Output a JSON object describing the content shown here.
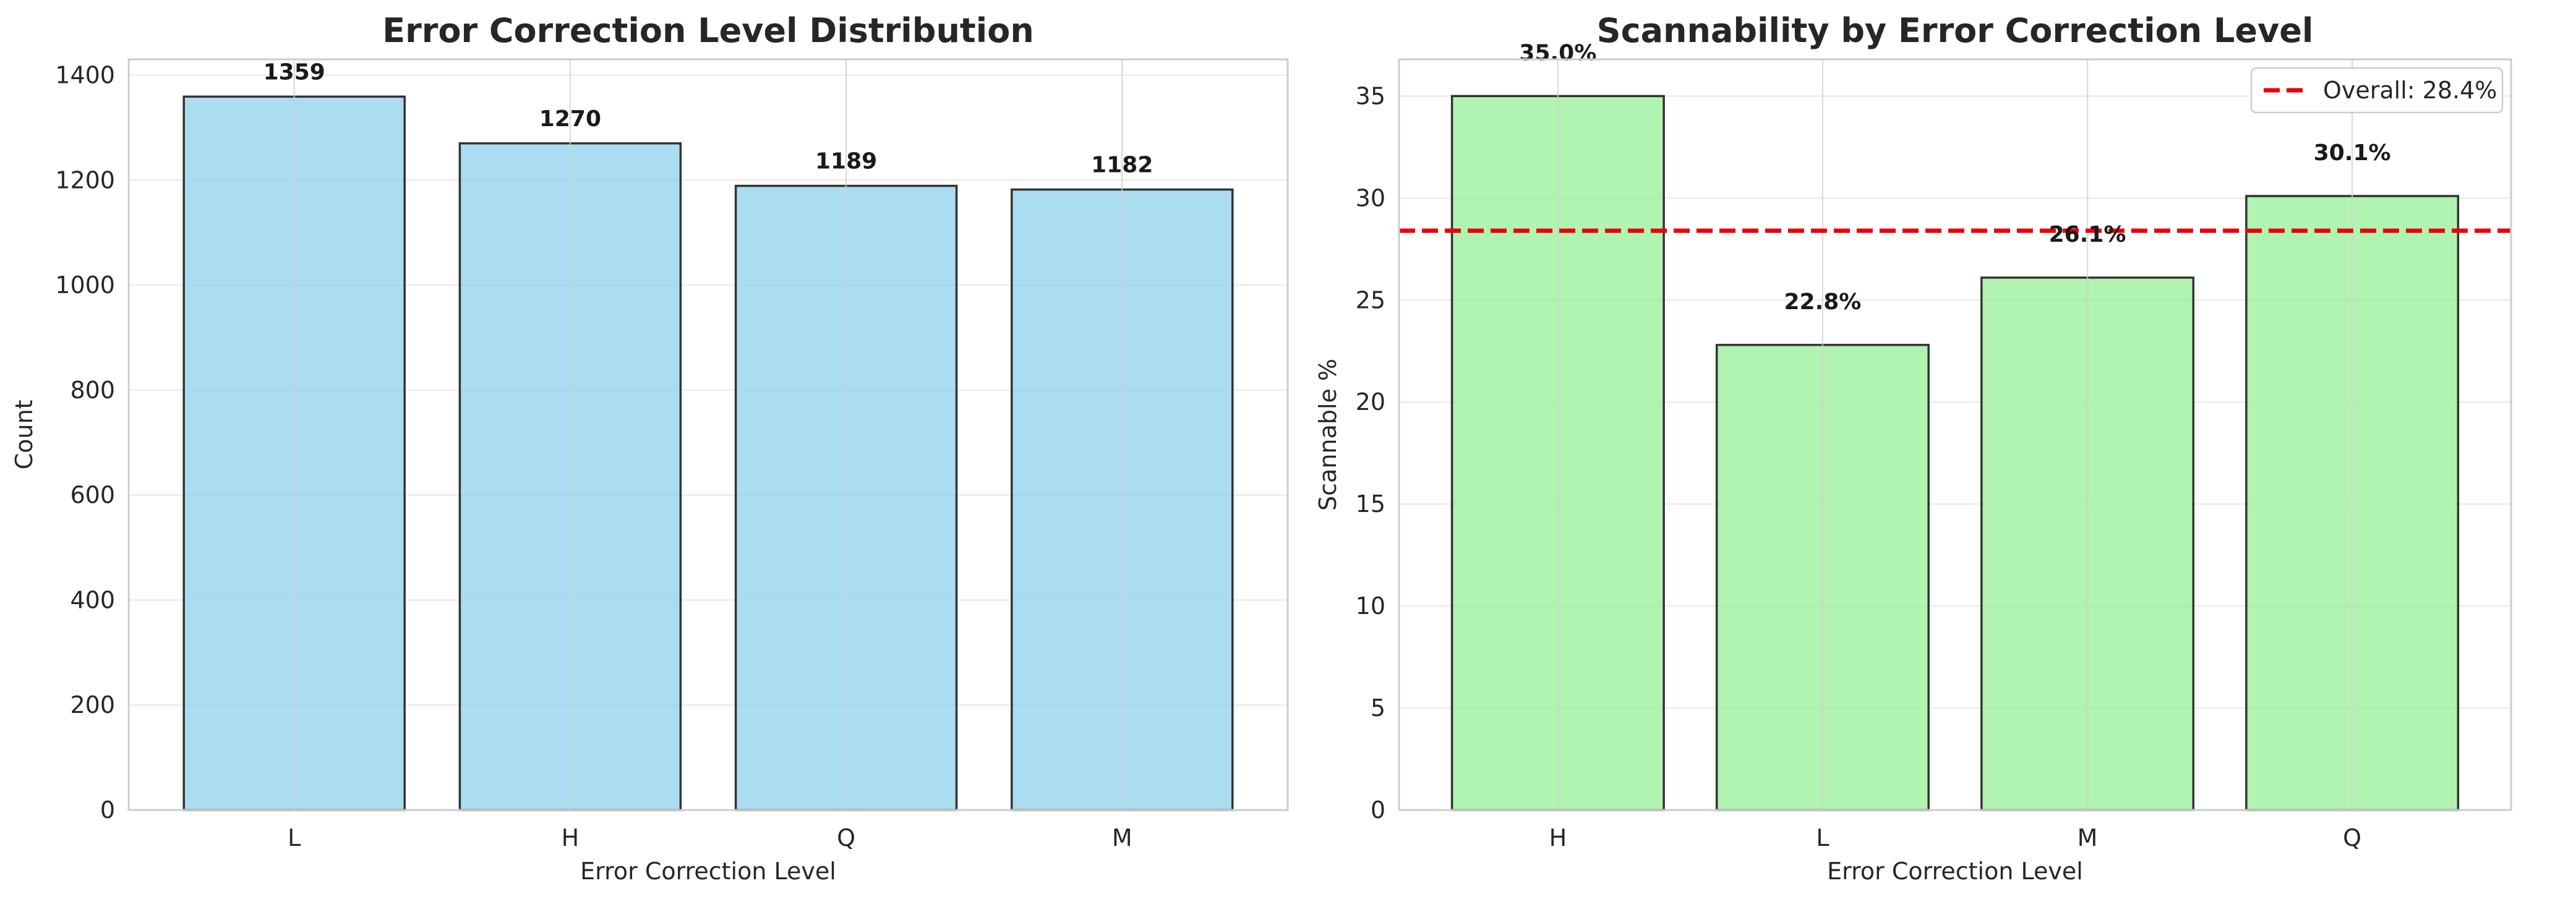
{
  "chart_data": [
    {
      "type": "bar",
      "title": "Error Correction Level Distribution",
      "xlabel": "Error Correction Level",
      "ylabel": "Count",
      "categories": [
        "L",
        "H",
        "Q",
        "M"
      ],
      "values": [
        1359,
        1270,
        1189,
        1182
      ],
      "value_labels": [
        "1359",
        "1270",
        "1189",
        "1182"
      ],
      "ylim": [
        0,
        1430
      ],
      "yticks": [
        0,
        200,
        400,
        600,
        800,
        1000,
        1200,
        1400
      ],
      "grid": true,
      "bar_color": "#87CEEB",
      "edge_color": "#333333"
    },
    {
      "type": "bar",
      "title": "Scannability by Error Correction Level",
      "xlabel": "Error Correction Level",
      "ylabel": "Scannable %",
      "categories": [
        "H",
        "L",
        "M",
        "Q"
      ],
      "values": [
        35.0,
        22.8,
        26.1,
        30.1
      ],
      "value_labels": [
        "35.0%",
        "22.8%",
        "26.1%",
        "30.1%"
      ],
      "ylim": [
        0,
        36.8
      ],
      "yticks": [
        0,
        5,
        10,
        15,
        20,
        25,
        30,
        35
      ],
      "grid": true,
      "bar_color": "#90EE90",
      "edge_color": "#333333",
      "reference_line": {
        "value": 28.4,
        "label": "Overall: 28.4%",
        "color": "#E8000B",
        "style": "dashed"
      },
      "legend_position": "top-right"
    }
  ]
}
